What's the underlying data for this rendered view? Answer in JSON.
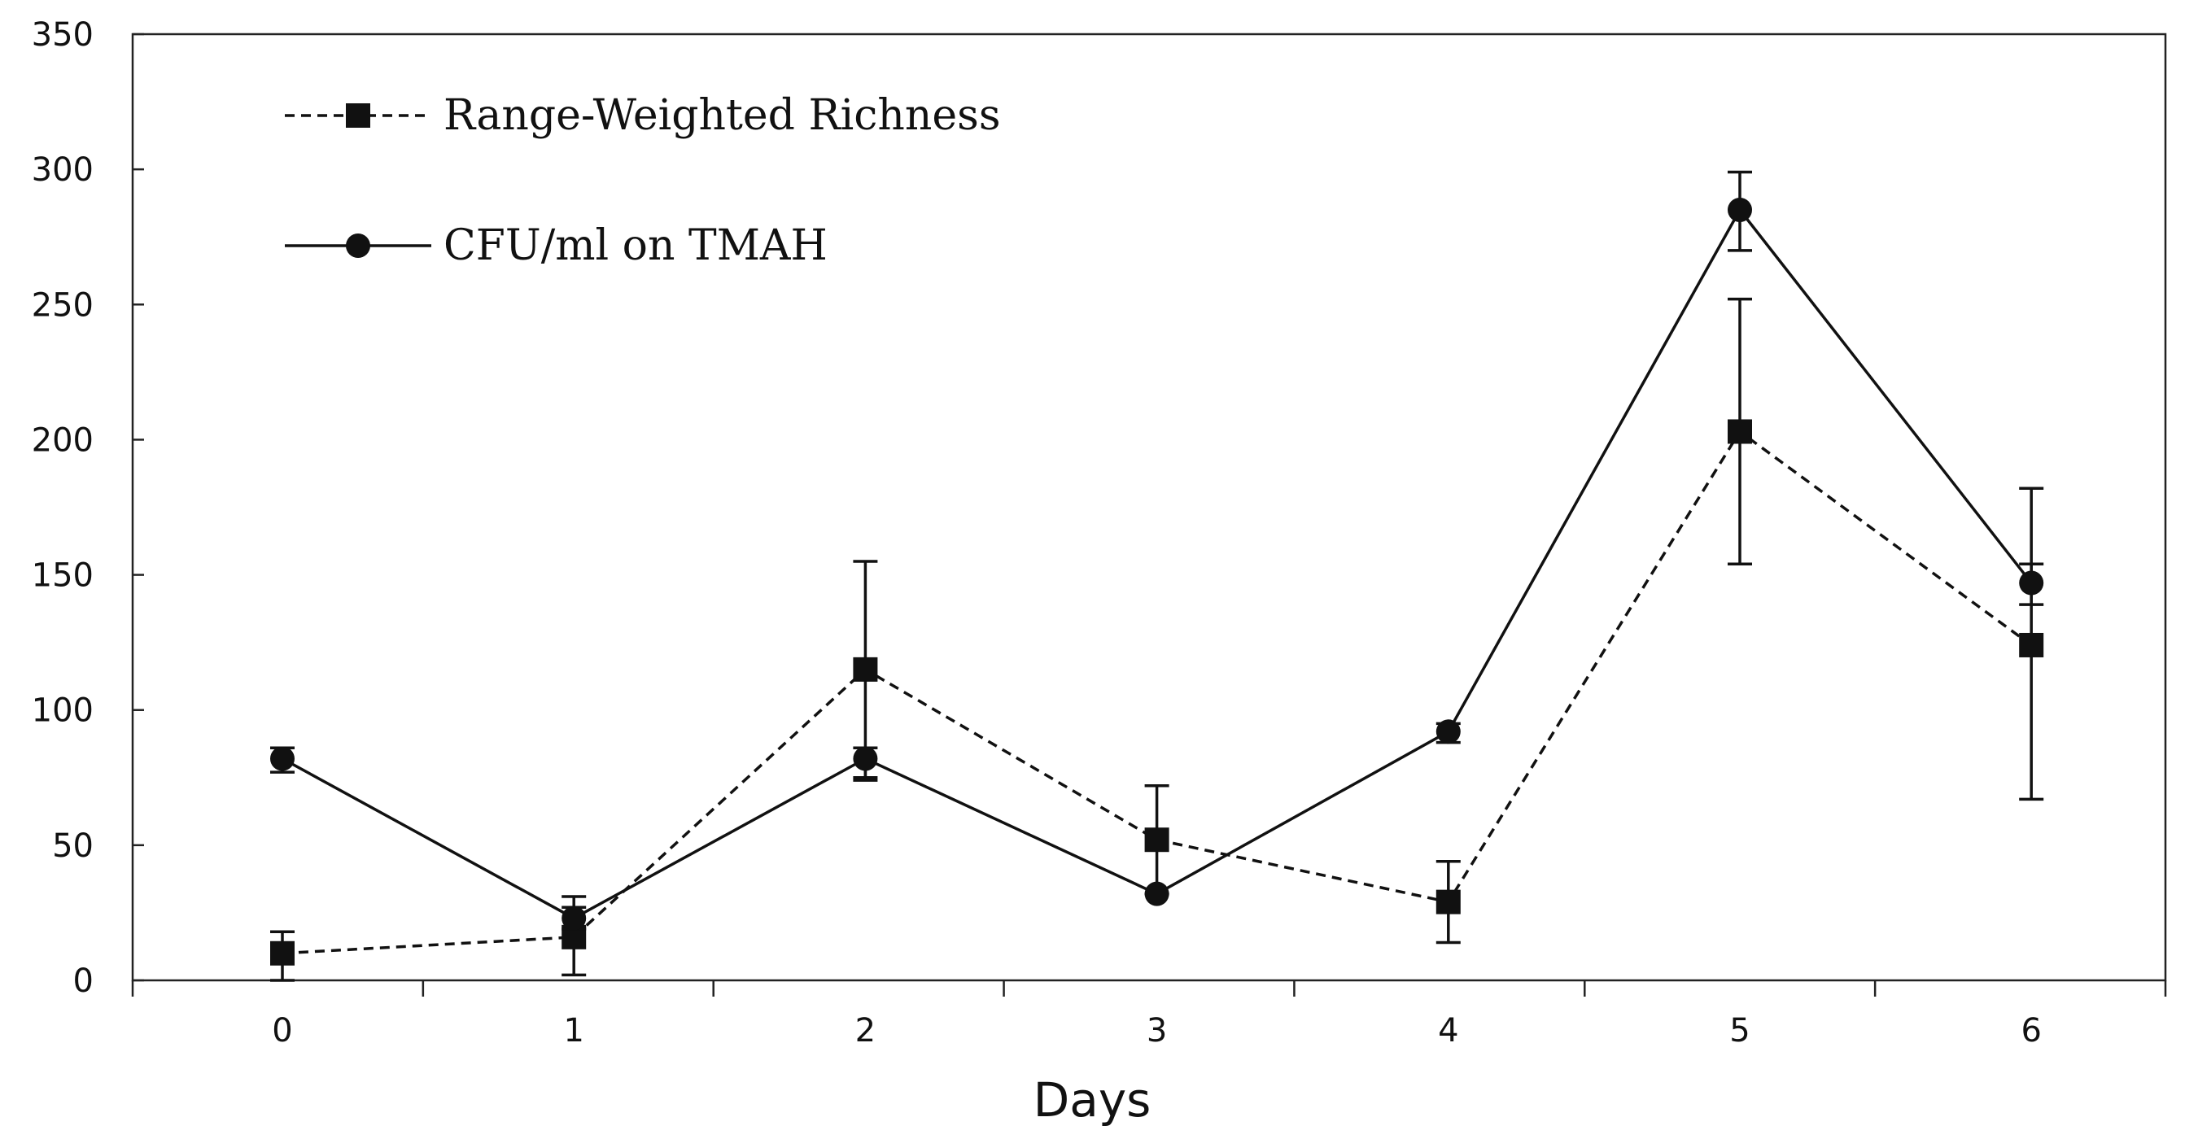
{
  "chart_data": {
    "type": "line",
    "title": "",
    "xlabel": "Days",
    "ylabel": "",
    "x": [
      0,
      1,
      2,
      3,
      4,
      5,
      6
    ],
    "x_ticks": [
      "0",
      "1",
      "2",
      "3",
      "4",
      "5",
      "6"
    ],
    "ylim": [
      0,
      350
    ],
    "y_ticks": [
      "0",
      "50",
      "100",
      "150",
      "200",
      "250",
      "300",
      "350"
    ],
    "grid": false,
    "legend_position": "top-left",
    "series": [
      {
        "name": "Range-Weighted Richness",
        "marker": "square",
        "line_style": "dashed",
        "values": [
          10,
          16,
          115,
          52,
          29,
          203,
          124
        ],
        "err_low": [
          10,
          14,
          40,
          20,
          15,
          49,
          57
        ],
        "err_high": [
          8,
          15,
          40,
          20,
          15,
          49,
          58
        ]
      },
      {
        "name": "CFU/ml on TMAH",
        "marker": "circle",
        "line_style": "solid",
        "values": [
          82,
          23,
          82,
          32,
          92,
          285,
          147
        ],
        "err_low": [
          5,
          4,
          8,
          0,
          4,
          15,
          8
        ],
        "err_high": [
          4,
          4,
          4,
          0,
          3,
          14,
          7
        ]
      }
    ],
    "colors": {
      "line": "#111111",
      "background": "#ffffff"
    }
  }
}
